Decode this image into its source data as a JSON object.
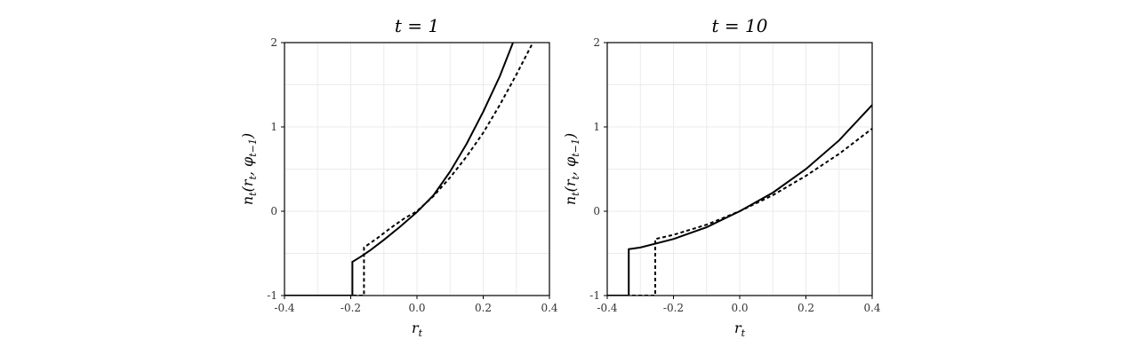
{
  "chart_data": [
    {
      "type": "line",
      "title": "t = 1",
      "xlabel": "r_t",
      "ylabel": "n_t(r_t, φ_{t−1})",
      "xlim": [
        -0.4,
        0.4
      ],
      "ylim": [
        -1,
        2
      ],
      "xticks": [
        "-0.4",
        "-0.2",
        "0.0",
        "0.2",
        "0.4"
      ],
      "yticks": [
        "-1",
        "0",
        "1",
        "2"
      ],
      "grid": true,
      "legend": "none",
      "series": [
        {
          "style": "solid",
          "x": [
            -0.4,
            -0.195,
            -0.195,
            -0.17,
            -0.14,
            -0.1,
            -0.05,
            0.0,
            0.05,
            0.1,
            0.15,
            0.2,
            0.25,
            0.29
          ],
          "y": [
            -1,
            -1,
            -0.6,
            -0.54,
            -0.46,
            -0.34,
            -0.18,
            -0.01,
            0.19,
            0.47,
            0.8,
            1.18,
            1.6,
            2.0
          ]
        },
        {
          "style": "dashed",
          "x": [
            -0.4,
            -0.16,
            -0.16,
            -0.12,
            -0.08,
            -0.04,
            0.0,
            0.05,
            0.1,
            0.15,
            0.2,
            0.25,
            0.3,
            0.35
          ],
          "y": [
            -1,
            -1,
            -0.43,
            -0.32,
            -0.2,
            -0.09,
            0.0,
            0.18,
            0.4,
            0.65,
            0.93,
            1.26,
            1.62,
            2.0
          ]
        }
      ]
    },
    {
      "type": "line",
      "title": "t = 10",
      "xlabel": "r_t",
      "ylabel": "n_t(r_t, φ_{t−1})",
      "xlim": [
        -0.4,
        0.4
      ],
      "ylim": [
        -1,
        2
      ],
      "xticks": [
        "-0.4",
        "-0.2",
        "0.0",
        "0.2",
        "0.4"
      ],
      "yticks": [
        "-1",
        "0",
        "1",
        "2"
      ],
      "grid": true,
      "legend": "none",
      "series": [
        {
          "style": "solid",
          "x": [
            -0.4,
            -0.335,
            -0.335,
            -0.3,
            -0.2,
            -0.1,
            0.0,
            0.1,
            0.2,
            0.3,
            0.4
          ],
          "y": [
            -1,
            -1,
            -0.45,
            -0.43,
            -0.33,
            -0.19,
            0.0,
            0.22,
            0.5,
            0.84,
            1.26
          ]
        },
        {
          "style": "dashed",
          "x": [
            -0.4,
            -0.255,
            -0.255,
            -0.2,
            -0.1,
            0.0,
            0.1,
            0.2,
            0.3,
            0.4
          ],
          "y": [
            -1,
            -1,
            -0.33,
            -0.28,
            -0.16,
            0.0,
            0.19,
            0.42,
            0.68,
            0.98
          ]
        }
      ]
    }
  ]
}
